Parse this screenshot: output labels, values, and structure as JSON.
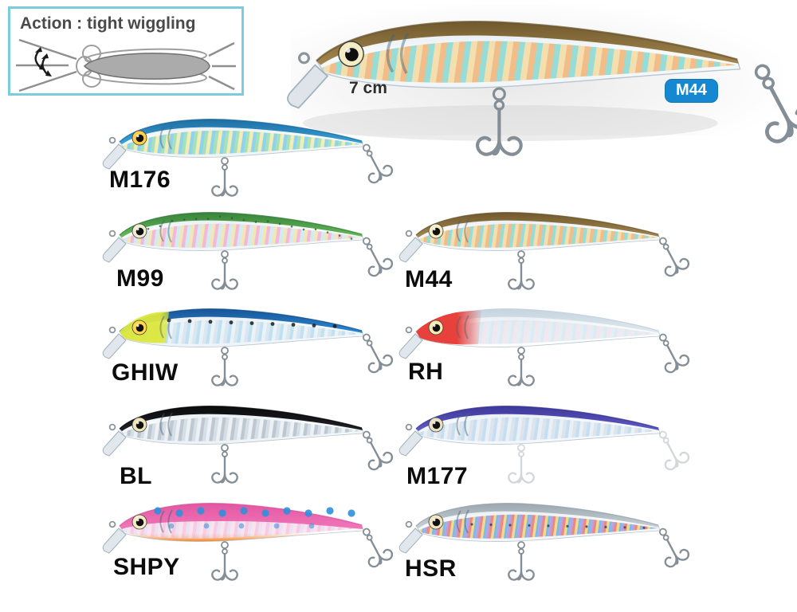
{
  "action_box": {
    "label": "Action : tight wiggling",
    "border_color": "#7bccdc"
  },
  "hero": {
    "size_label": "7 cm",
    "badge_label": "M44",
    "badge_color": "#1688d2",
    "variant_code": "M44"
  },
  "variants": [
    {
      "code": "M176",
      "colors": {
        "back": "#2f9ed8",
        "back_dark": "#14679e",
        "holo": [
          "#8fd8a8",
          "#f4e88c",
          "#70c8e8"
        ],
        "belly": "#edf3f7",
        "eye": "#ffd04a"
      }
    },
    {
      "code": "M99",
      "colors": {
        "back": "#5fb84e",
        "back_dark": "#2f7d33",
        "holo": [
          "#f4a6cc",
          "#bce4f0",
          "#f0e2a2"
        ],
        "belly": "#eef4f7",
        "eye": "#f2ecd2",
        "speckles": "#2f5a28"
      }
    },
    {
      "code": "M44",
      "colors": {
        "back": "#a08146",
        "back_dark": "#6b5224",
        "holo": [
          "#7cd4cc",
          "#f6d080",
          "#f0aa66"
        ],
        "belly": "#f1f5f7",
        "eye": "#f4ecc4"
      }
    },
    {
      "code": "GHIW",
      "colors": {
        "back": "#1f86d4",
        "back_dark": "#0e4d92",
        "holo": [
          "#d2e2ee",
          "#a2d4ec",
          "#e9f1f6"
        ],
        "belly": "#eef4f8",
        "eye": "#ffd84e",
        "head": "#dce73d",
        "dots": {
          "color": "#1c1c1c",
          "r": 2.4,
          "style": "row"
        }
      }
    },
    {
      "code": "RH",
      "colors": {
        "back": "#dfe8ee",
        "back_dark": "#c4d3de",
        "holo": [
          "#d5e5f0",
          "#f0dce4",
          "#dceaf2"
        ],
        "belly": "#fdfefe",
        "eye": "#f6eab2",
        "head": "#e8403b"
      }
    },
    {
      "code": "BL",
      "colors": {
        "back": "#15151d",
        "back_dark": "#000000",
        "holo": [
          "#ccd7e1",
          "#eaeff3",
          "#aeb9c5"
        ],
        "belly": "#edf2f5",
        "eye": "#efe5bd"
      }
    },
    {
      "code": "M177",
      "colors": {
        "back": "#5951c5",
        "back_dark": "#353093",
        "holo": [
          "#d4deea",
          "#accfeb",
          "#e8eef3"
        ],
        "belly": "#f4f7fa",
        "eye": "#e8e0c6",
        "hook_opacity": 0.35
      }
    },
    {
      "code": "SHPY",
      "colors": {
        "back": "#f170b6",
        "back_dark": "#e14f9d",
        "deep_back": true,
        "holo": [
          "#f6bcda",
          "#e2d2ea",
          "#f9dcea"
        ],
        "belly": "#ffffff",
        "belly_accent": "#f5821d",
        "eye": "#f4ecc6",
        "dots": {
          "color": "#2f8fdc",
          "r": 4.6,
          "style": "scatter"
        }
      }
    },
    {
      "code": "HSR",
      "colors": {
        "back": "#c6ced4",
        "back_dark": "#98a4ac",
        "holo": [
          "#e8685a",
          "#f2c850",
          "#58a8e2",
          "#9a6cd2"
        ],
        "belly": "#f1f5f7",
        "eye": "#eee6c2",
        "dots": {
          "color": "#3c3c44",
          "r": 1.6,
          "style": "mid"
        }
      }
    }
  ]
}
